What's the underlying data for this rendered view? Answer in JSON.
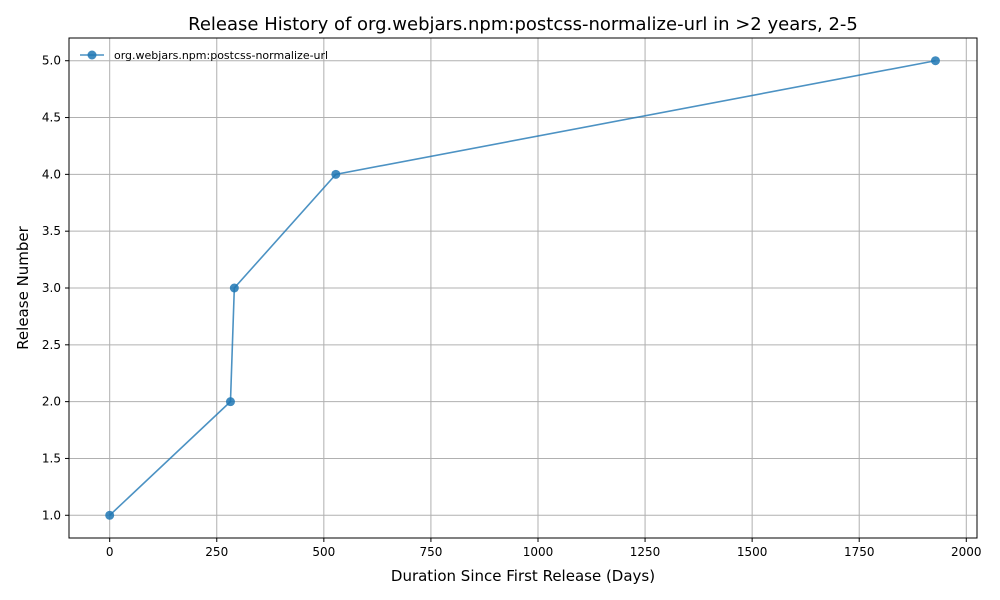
{
  "chart_data": {
    "type": "line",
    "title": "Release History of org.webjars.npm:postcss-normalize-url in >2 years, 2-5",
    "xlabel": "Duration Since First Release (Days)",
    "ylabel": "Release Number",
    "xlim": [
      -95,
      2025
    ],
    "ylim": [
      0.8,
      5.2
    ],
    "x_ticks": [
      0,
      250,
      500,
      750,
      1000,
      1250,
      1500,
      1750,
      2000
    ],
    "y_ticks": [
      1.0,
      1.5,
      2.0,
      2.5,
      3.0,
      3.5,
      4.0,
      4.5,
      5.0
    ],
    "x_tick_labels": [
      "0",
      "250",
      "500",
      "750",
      "1000",
      "1250",
      "1500",
      "1750",
      "2000"
    ],
    "y_tick_labels": [
      "1.0",
      "1.5",
      "2.0",
      "2.5",
      "3.0",
      "3.5",
      "4.0",
      "4.5",
      "5.0"
    ],
    "grid": true,
    "legend_position": "top-left",
    "series": [
      {
        "name": "org.webjars.npm:postcss-normalize-url",
        "color": "#1f77b4",
        "x": [
          0,
          282,
          291,
          528,
          1928
        ],
        "y": [
          1,
          2,
          3,
          4,
          5
        ]
      }
    ]
  }
}
